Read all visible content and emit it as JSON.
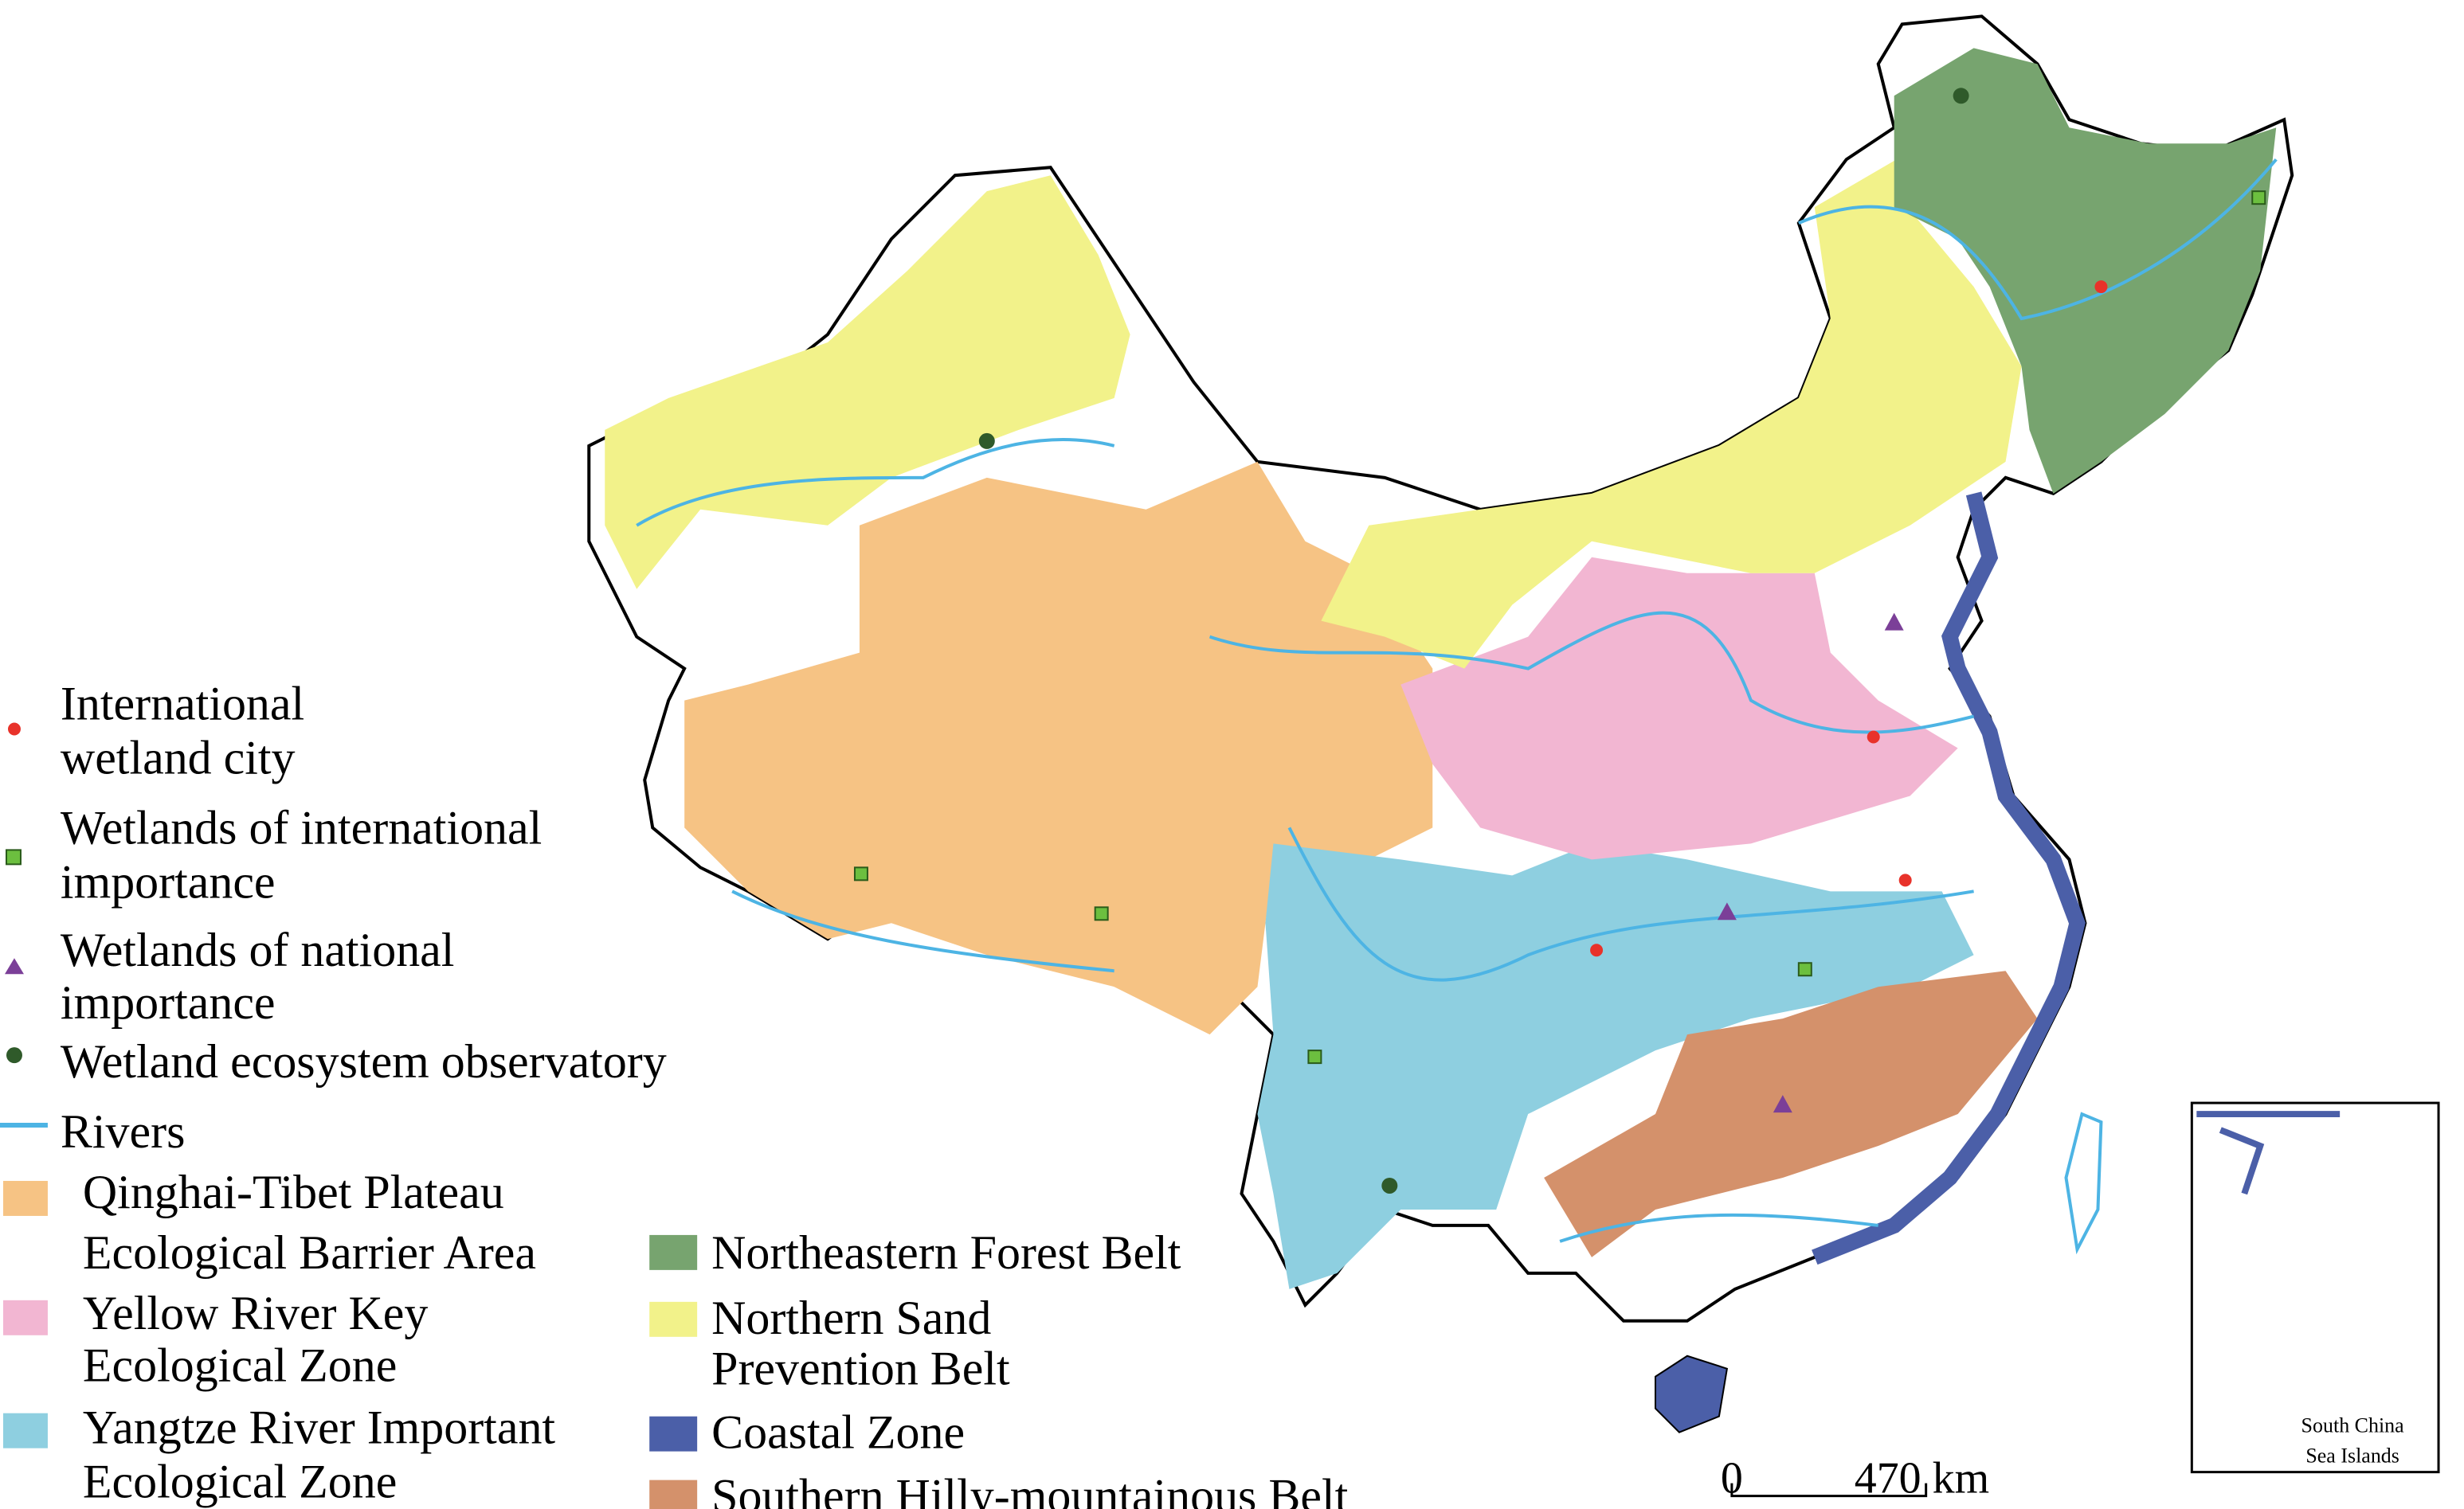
{
  "legend": {
    "items": [
      {
        "label": [
          "International",
          "wetland city"
        ]
      },
      {
        "label": [
          "Wetlands of international",
          "importance"
        ]
      },
      {
        "label": [
          "Wetlands of national",
          "importance"
        ]
      },
      {
        "label": [
          "Wetland ecosystem observatory"
        ]
      },
      {
        "label": [
          "Rivers"
        ]
      },
      {
        "label": [
          "Qinghai-Tibet Plateau",
          "Ecological Barrier Area"
        ]
      },
      {
        "label": [
          "Yellow River Key",
          "Ecological Zone"
        ]
      },
      {
        "label": [
          "Yangtze River Important",
          "Ecological Zone"
        ]
      },
      {
        "label": [
          "Northeastern Forest Belt"
        ]
      },
      {
        "label": [
          "Northern Sand",
          "Prevention Belt"
        ]
      },
      {
        "label": [
          "Coastal Zone"
        ]
      },
      {
        "label": [
          "Southern Hilly-mountainous Belt"
        ]
      }
    ]
  },
  "scale_bar": {
    "start": "0",
    "end": "470 km"
  },
  "inset": {
    "label": [
      "South China",
      "Sea Islands"
    ]
  }
}
